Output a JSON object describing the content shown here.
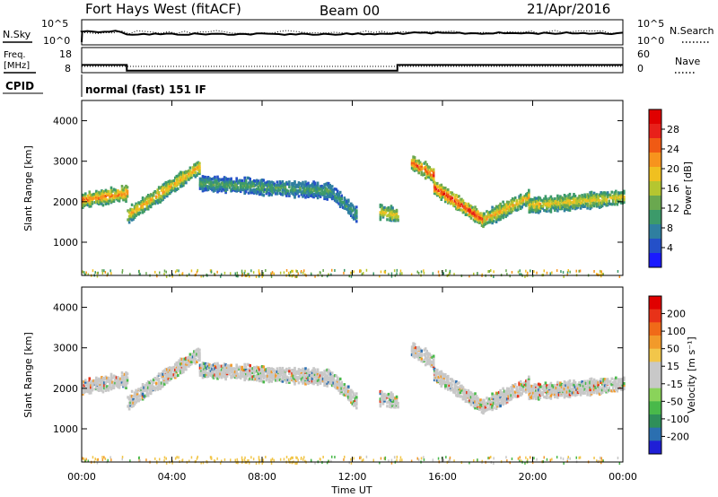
{
  "header": {
    "title": "Fort Hays West (fitACF)",
    "beam": "Beam 00",
    "date": "21/Apr/2016"
  },
  "top_panels": {
    "nsky_label": "N.Sky",
    "nsearch_label": "N.Search",
    "noise_ticks": [
      "10^5",
      "10^0"
    ],
    "freq_label_1": "Freq.",
    "freq_label_2": "[MHz]",
    "freq_ticks": [
      "18",
      "8"
    ],
    "nave_label": "Nave",
    "nave_ticks": [
      "60",
      "0"
    ],
    "cpid_label": "CPID",
    "cpid_text": "normal (fast) 151 IF"
  },
  "power_panel": {
    "ylabel": "Slant Range [km]",
    "yticks": [
      "1000",
      "2000",
      "3000",
      "4000"
    ],
    "colorbar_label": "Power [dB]",
    "colorbar_ticks": [
      "4",
      "8",
      "12",
      "16",
      "20",
      "24",
      "28"
    ],
    "colors": [
      "#1a1aff",
      "#2450c8",
      "#2f7fa0",
      "#3c9a6a",
      "#6aa84f",
      "#b5c630",
      "#f0c020",
      "#f7941d",
      "#f05a14",
      "#e8201a",
      "#e00000"
    ]
  },
  "velocity_panel": {
    "ylabel": "Slant Range [km]",
    "yticks": [
      "1000",
      "2000",
      "3000",
      "4000"
    ],
    "colorbar_label": "Velocity [m s⁻¹]",
    "colorbar_ticks": [
      "200",
      "100",
      "50",
      "15",
      "-15",
      "-50",
      "-100",
      "-200"
    ],
    "colors": [
      "#1f1fd6",
      "#2b6fb0",
      "#2f8f5a",
      "#49b94a",
      "#8ad35a",
      "#c8c8c8",
      "#c8c8c8",
      "#f2c64a",
      "#f29a2a",
      "#f06a18",
      "#e83218",
      "#e00000"
    ]
  },
  "xaxis": {
    "label": "Time UT",
    "ticks": [
      "00:00",
      "04:00",
      "08:00",
      "12:00",
      "16:00",
      "20:00",
      "00:00"
    ]
  },
  "chart_data": {
    "type": "heatmap",
    "x_range_hours": [
      0,
      24
    ],
    "y_range_km": [
      180,
      4500
    ],
    "echo_bands": [
      {
        "t_start": 0.0,
        "t_end": 2.0,
        "range_start": 2080,
        "range_end": 2250,
        "power_db": 20
      },
      {
        "t_start": 2.0,
        "t_end": 5.2,
        "range_start": 1700,
        "range_end": 2900,
        "power_db": 18
      },
      {
        "t_start": 5.2,
        "t_end": 11.0,
        "range_start": 2500,
        "range_end": 2300,
        "power_db": 9
      },
      {
        "t_start": 11.0,
        "t_end": 12.2,
        "range_start": 2300,
        "range_end": 1700,
        "power_db": 8
      },
      {
        "t_start": 13.2,
        "t_end": 14.0,
        "range_start": 1800,
        "range_end": 1700,
        "power_db": 16
      },
      {
        "t_start": 14.6,
        "t_end": 15.6,
        "range_start": 3000,
        "range_end": 2700,
        "power_db": 22
      },
      {
        "t_start": 15.6,
        "t_end": 17.8,
        "range_start": 2400,
        "range_end": 1580,
        "power_db": 24
      },
      {
        "t_start": 17.8,
        "t_end": 19.8,
        "range_start": 1600,
        "range_end": 2150,
        "power_db": 18
      },
      {
        "t_start": 19.8,
        "t_end": 24.0,
        "range_start": 1950,
        "range_end": 2150,
        "power_db": 16
      }
    ]
  }
}
